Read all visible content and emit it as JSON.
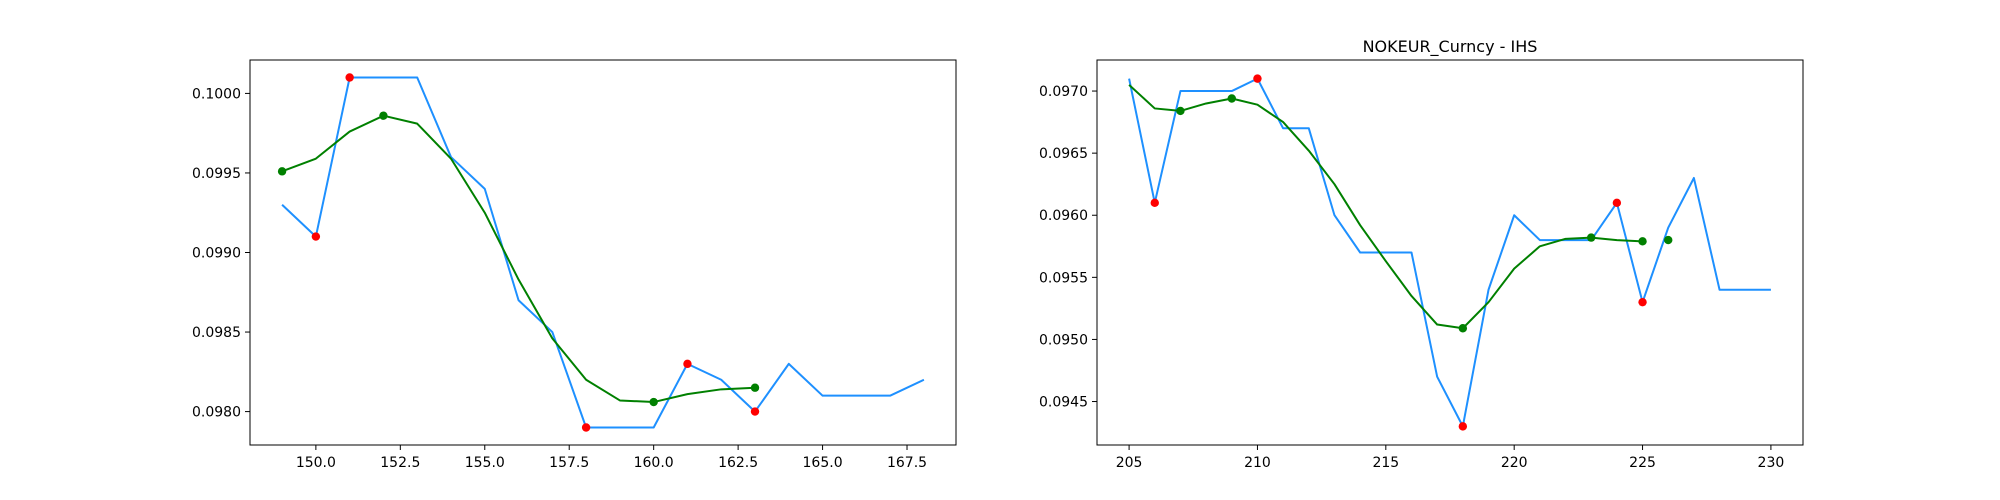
{
  "chart_data": [
    {
      "type": "line",
      "title": "",
      "xlabel": "",
      "ylabel": "",
      "xlim": [
        148.05,
        168.95
      ],
      "ylim": [
        0.09779,
        0.10021
      ],
      "xticks": [
        150.0,
        152.5,
        155.0,
        157.5,
        160.0,
        162.5,
        165.0,
        167.5
      ],
      "xtick_labels": [
        "150.0",
        "152.5",
        "155.0",
        "157.5",
        "160.0",
        "162.5",
        "165.0",
        "167.5"
      ],
      "yticks": [
        0.098,
        0.0985,
        0.099,
        0.0995,
        0.1
      ],
      "ytick_labels": [
        "0.0980",
        "0.0985",
        "0.0990",
        "0.0995",
        "0.1000"
      ],
      "grid": false,
      "series": [
        {
          "style": "line",
          "color": "#1e90ff",
          "points": [
            [
              149,
              0.0993
            ],
            [
              150,
              0.0991
            ],
            [
              151,
              0.1001
            ],
            [
              152,
              0.1001
            ],
            [
              153,
              0.1001
            ],
            [
              154,
              0.0996
            ],
            [
              155,
              0.0994
            ],
            [
              156,
              0.0987
            ],
            [
              157,
              0.0985
            ],
            [
              158,
              0.0979
            ],
            [
              159,
              0.0979
            ],
            [
              160,
              0.0979
            ],
            [
              161,
              0.0983
            ],
            [
              162,
              0.0982
            ],
            [
              163,
              0.098
            ],
            [
              164,
              0.0983
            ],
            [
              165,
              0.0981
            ],
            [
              166,
              0.0981
            ],
            [
              167,
              0.0981
            ],
            [
              168,
              0.0982
            ]
          ]
        },
        {
          "style": "line",
          "color": "#008000",
          "points": [
            [
              149,
              0.09951
            ],
            [
              150,
              0.09959
            ],
            [
              151,
              0.09976
            ],
            [
              152,
              0.09986
            ],
            [
              153,
              0.09981
            ],
            [
              154,
              0.09959
            ],
            [
              155,
              0.09925
            ],
            [
              156,
              0.09883
            ],
            [
              157,
              0.09846
            ],
            [
              158,
              0.0982
            ],
            [
              159,
              0.09807
            ],
            [
              160,
              0.09806
            ],
            [
              161,
              0.09811
            ],
            [
              162,
              0.09814
            ],
            [
              163,
              0.09815
            ]
          ]
        },
        {
          "style": "scatter",
          "color": "#ff0000",
          "points": [
            [
              150,
              0.0991
            ],
            [
              151,
              0.1001
            ],
            [
              158,
              0.0979
            ],
            [
              161,
              0.0983
            ],
            [
              163,
              0.098
            ]
          ]
        },
        {
          "style": "scatter",
          "color": "#008000",
          "points": [
            [
              149,
              0.09951
            ],
            [
              152,
              0.09986
            ],
            [
              160,
              0.09806
            ],
            [
              163,
              0.09815
            ]
          ]
        }
      ]
    },
    {
      "type": "line",
      "title": "NOKEUR_Curncy - IHS",
      "xlabel": "",
      "ylabel": "",
      "xlim": [
        203.75,
        231.25
      ],
      "ylim": [
        0.09415,
        0.09725
      ],
      "xticks": [
        205,
        210,
        215,
        220,
        225,
        230
      ],
      "xtick_labels": [
        "205",
        "210",
        "215",
        "220",
        "225",
        "230"
      ],
      "yticks": [
        0.0945,
        0.095,
        0.0955,
        0.096,
        0.0965,
        0.097
      ],
      "ytick_labels": [
        "0.0945",
        "0.0950",
        "0.0955",
        "0.0960",
        "0.0965",
        "0.0970"
      ],
      "grid": false,
      "series": [
        {
          "style": "line",
          "color": "#1e90ff",
          "points": [
            [
              205,
              0.0971
            ],
            [
              206,
              0.0961
            ],
            [
              207,
              0.097
            ],
            [
              208,
              0.097
            ],
            [
              209,
              0.097
            ],
            [
              210,
              0.0971
            ],
            [
              211,
              0.0967
            ],
            [
              212,
              0.0967
            ],
            [
              213,
              0.096
            ],
            [
              214,
              0.0957
            ],
            [
              215,
              0.0957
            ],
            [
              216,
              0.0957
            ],
            [
              217,
              0.0947
            ],
            [
              218,
              0.0943
            ],
            [
              219,
              0.0954
            ],
            [
              220,
              0.096
            ],
            [
              221,
              0.0958
            ],
            [
              222,
              0.0958
            ],
            [
              223,
              0.0958
            ],
            [
              224,
              0.0961
            ],
            [
              225,
              0.0953
            ],
            [
              226,
              0.0959
            ],
            [
              227,
              0.0963
            ],
            [
              228,
              0.0954
            ],
            [
              229,
              0.0954
            ],
            [
              230,
              0.0954
            ]
          ]
        },
        {
          "style": "line",
          "color": "#008000",
          "points": [
            [
              205,
              0.09705
            ],
            [
              206,
              0.09686
            ],
            [
              207,
              0.09684
            ],
            [
              208,
              0.0969
            ],
            [
              209,
              0.09694
            ],
            [
              210,
              0.09689
            ],
            [
              211,
              0.09675
            ],
            [
              212,
              0.09652
            ],
            [
              213,
              0.09625
            ],
            [
              214,
              0.09592
            ],
            [
              215,
              0.09563
            ],
            [
              216,
              0.09535
            ],
            [
              217,
              0.09512
            ],
            [
              218,
              0.09509
            ],
            [
              219,
              0.0953
            ],
            [
              220,
              0.09557
            ],
            [
              221,
              0.09575
            ],
            [
              222,
              0.09581
            ],
            [
              223,
              0.09582
            ],
            [
              224,
              0.0958
            ],
            [
              225,
              0.09579
            ]
          ]
        },
        {
          "style": "scatter",
          "color": "#ff0000",
          "points": [
            [
              206,
              0.0961
            ],
            [
              210,
              0.0971
            ],
            [
              218,
              0.0943
            ],
            [
              224,
              0.0961
            ],
            [
              225,
              0.0953
            ]
          ]
        },
        {
          "style": "scatter",
          "color": "#008000",
          "points": [
            [
              207,
              0.09684
            ],
            [
              209,
              0.09694
            ],
            [
              218,
              0.09509
            ],
            [
              223,
              0.09582
            ],
            [
              225,
              0.09579
            ],
            [
              226,
              0.0958
            ]
          ]
        }
      ]
    }
  ]
}
